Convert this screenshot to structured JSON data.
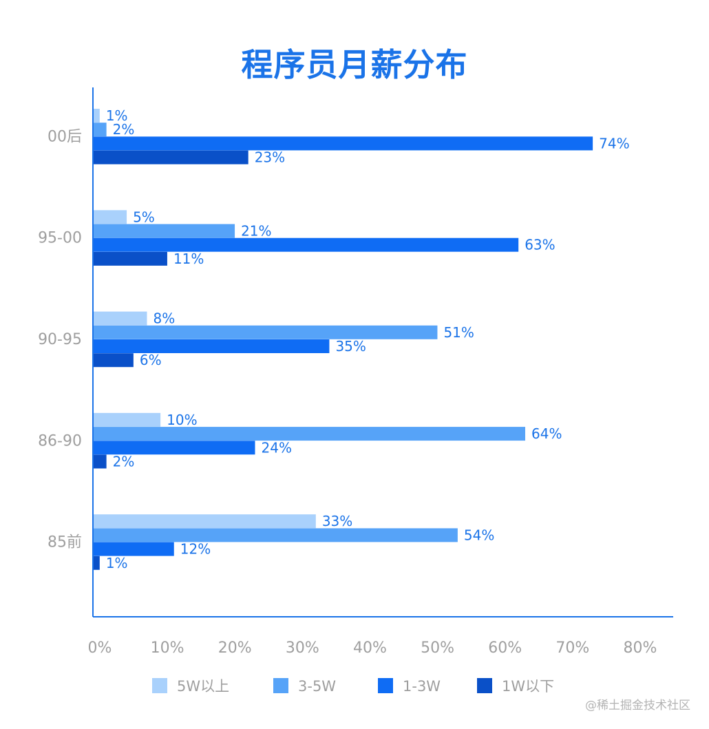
{
  "chart_data": {
    "type": "bar",
    "orientation": "horizontal",
    "title": "程序员月薪分布",
    "categories": [
      "00后",
      "95-00",
      "90-95",
      "86-90",
      "85前"
    ],
    "series": [
      {
        "name": "5W以上",
        "color": "#a9d1fc",
        "values": [
          1,
          5,
          8,
          10,
          33
        ]
      },
      {
        "name": "3-5W",
        "color": "#56a3f8",
        "values": [
          2,
          21,
          51,
          64,
          54
        ]
      },
      {
        "name": "1-3W",
        "color": "#0f6cf4",
        "values": [
          74,
          63,
          35,
          24,
          12
        ]
      },
      {
        "name": "1W以下",
        "color": "#0a50c8",
        "values": [
          23,
          11,
          6,
          2,
          1
        ]
      }
    ],
    "value_suffix": "%",
    "xlim": [
      0,
      80
    ],
    "x_ticks": [
      "0%",
      "10%",
      "20%",
      "30%",
      "40%",
      "50%",
      "60%",
      "70%",
      "80%"
    ],
    "grid": false,
    "legend_position": "bottom"
  },
  "colors": {
    "title": "#1a73e8",
    "axis": "#1a73e8",
    "data_label": "#1a73e8",
    "tick_label": "#9e9e9e"
  },
  "watermark": "@稀土掘金技术社区"
}
